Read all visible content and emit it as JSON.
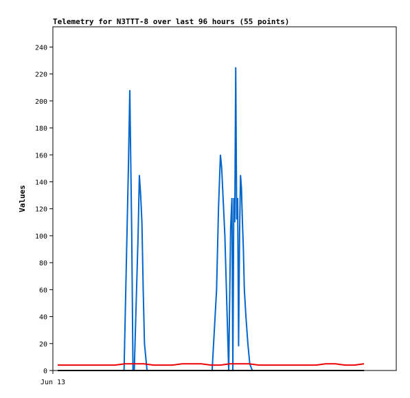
{
  "chart_data": {
    "type": "line",
    "title": "Telemetry for N3TTT-8 over last 96 hours (55 points)",
    "xlabel": "",
    "ylabel": "Values",
    "ylim": [
      0,
      255
    ],
    "yticks": [
      0,
      20,
      40,
      60,
      80,
      100,
      120,
      140,
      160,
      180,
      200,
      220,
      240
    ],
    "xlim": [
      0,
      96
    ],
    "xticks": [
      {
        "x": 0,
        "label": "Jun 13"
      }
    ],
    "grid": false,
    "legend": "none",
    "series": [
      {
        "color": "#0066cc",
        "x": [
          0,
          20.8,
          22.2,
          22.6,
          23.2,
          23.6,
          24.0,
          25.2,
          25.6,
          26.0,
          26.4,
          26.8,
          27.2,
          28.0,
          28.6,
          48.4,
          49.8,
          50.4,
          51.0,
          51.4,
          51.8,
          52.4,
          53.0,
          53.6,
          54.2,
          54.6,
          54.9,
          55.2,
          55.5,
          55.8,
          56.1,
          56.4,
          56.7,
          57.0,
          57.3,
          57.6,
          57.9,
          58.2,
          58.5,
          59.0,
          59.6,
          60.2,
          61.0,
          61.6,
          96
        ],
        "values": [
          0,
          0,
          155,
          208,
          103,
          0,
          0,
          100,
          145,
          130,
          110,
          60,
          20,
          0,
          0,
          0,
          60,
          120,
          160,
          150,
          130,
          100,
          50,
          0,
          105,
          128,
          0,
          128,
          110,
          225,
          112,
          128,
          18,
          100,
          145,
          135,
          110,
          90,
          60,
          40,
          20,
          5,
          0,
          0,
          0
        ]
      },
      {
        "color": "#000000",
        "x": [
          0,
          96
        ],
        "values": [
          0,
          0
        ]
      },
      {
        "color": "#ee0000",
        "x": [
          0,
          3,
          6,
          9,
          12,
          15,
          18,
          21,
          24,
          27,
          30,
          33,
          36,
          39,
          42,
          45,
          48,
          51,
          54,
          57,
          60,
          63,
          66,
          69,
          72,
          75,
          78,
          81,
          84,
          87,
          90,
          93,
          96
        ],
        "values": [
          4,
          4,
          4,
          4,
          4,
          4,
          4,
          5,
          5,
          5,
          4,
          4,
          4,
          5,
          5,
          5,
          4,
          4,
          5,
          5,
          5,
          4,
          4,
          4,
          4,
          4,
          4,
          4,
          5,
          5,
          4,
          4,
          5
        ]
      }
    ]
  }
}
